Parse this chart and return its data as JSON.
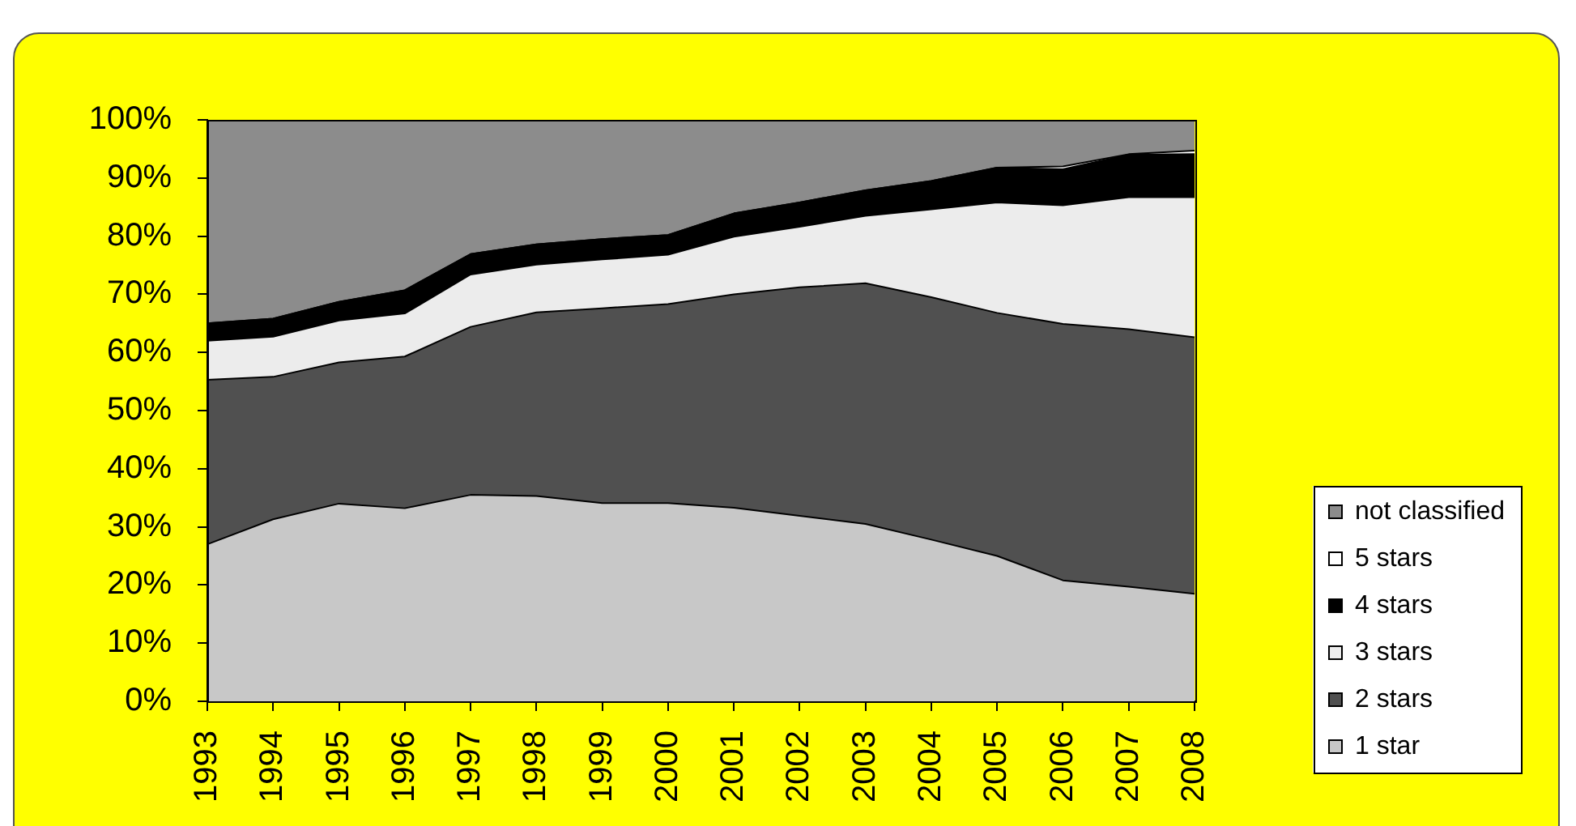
{
  "chart_data": {
    "type": "area",
    "stacked": true,
    "grid": false,
    "legend": "right",
    "categories": [
      "1993",
      "1994",
      "1995",
      "1996",
      "1997",
      "1998",
      "1999",
      "2000",
      "2001",
      "2002",
      "2003",
      "2004",
      "2005",
      "2006",
      "2007",
      "2008"
    ],
    "ylim": [
      0,
      100
    ],
    "yticks": [
      {
        "value": 0,
        "label": "0%"
      },
      {
        "value": 10,
        "label": "10%"
      },
      {
        "value": 20,
        "label": "20%"
      },
      {
        "value": 30,
        "label": "30%"
      },
      {
        "value": 40,
        "label": "40%"
      },
      {
        "value": 50,
        "label": "50%"
      },
      {
        "value": 60,
        "label": "60%"
      },
      {
        "value": 70,
        "label": "70%"
      },
      {
        "value": 80,
        "label": "80%"
      },
      {
        "value": 90,
        "label": "90%"
      },
      {
        "value": 100,
        "label": "100%"
      }
    ],
    "series": [
      {
        "name": "1 star",
        "color": "#c8c8c8",
        "values": [
          27.0,
          31.3,
          34.0,
          33.2,
          35.5,
          35.3,
          34.1,
          34.1,
          33.3,
          31.9,
          30.5,
          27.8,
          25.0,
          20.8,
          19.7,
          18.5
        ]
      },
      {
        "name": "2 stars",
        "color": "#505050",
        "values": [
          28.3,
          24.5,
          24.3,
          26.1,
          28.9,
          31.6,
          33.5,
          34.2,
          36.7,
          39.3,
          41.4,
          41.7,
          41.8,
          44.1,
          44.3,
          44.1
        ]
      },
      {
        "name": "3 stars",
        "color": "#ececec",
        "values": [
          6.7,
          6.9,
          7.2,
          7.4,
          9.0,
          8.2,
          8.4,
          8.5,
          9.9,
          10.4,
          11.6,
          15.1,
          19.0,
          20.4,
          22.7,
          24.1
        ]
      },
      {
        "name": "4 stars",
        "color": "#000000",
        "values": [
          3.0,
          3.1,
          3.2,
          4.0,
          3.5,
          3.5,
          3.5,
          3.4,
          4.0,
          4.2,
          4.4,
          4.9,
          6.0,
          6.2,
          7.3,
          7.4
        ]
      },
      {
        "name": "5 stars",
        "color": "#ffffff",
        "values": [
          0,
          0,
          0,
          0,
          0,
          0,
          0,
          0,
          0,
          0,
          0,
          0,
          0,
          0.5,
          0.1,
          0.6
        ]
      },
      {
        "name": "not classified",
        "color": "#8c8c8c",
        "values": [
          35.0,
          34.2,
          31.3,
          29.3,
          23.1,
          21.4,
          20.5,
          19.8,
          16.1,
          14.2,
          12.1,
          10.5,
          8.2,
          8.0,
          5.9,
          5.3
        ]
      }
    ]
  }
}
